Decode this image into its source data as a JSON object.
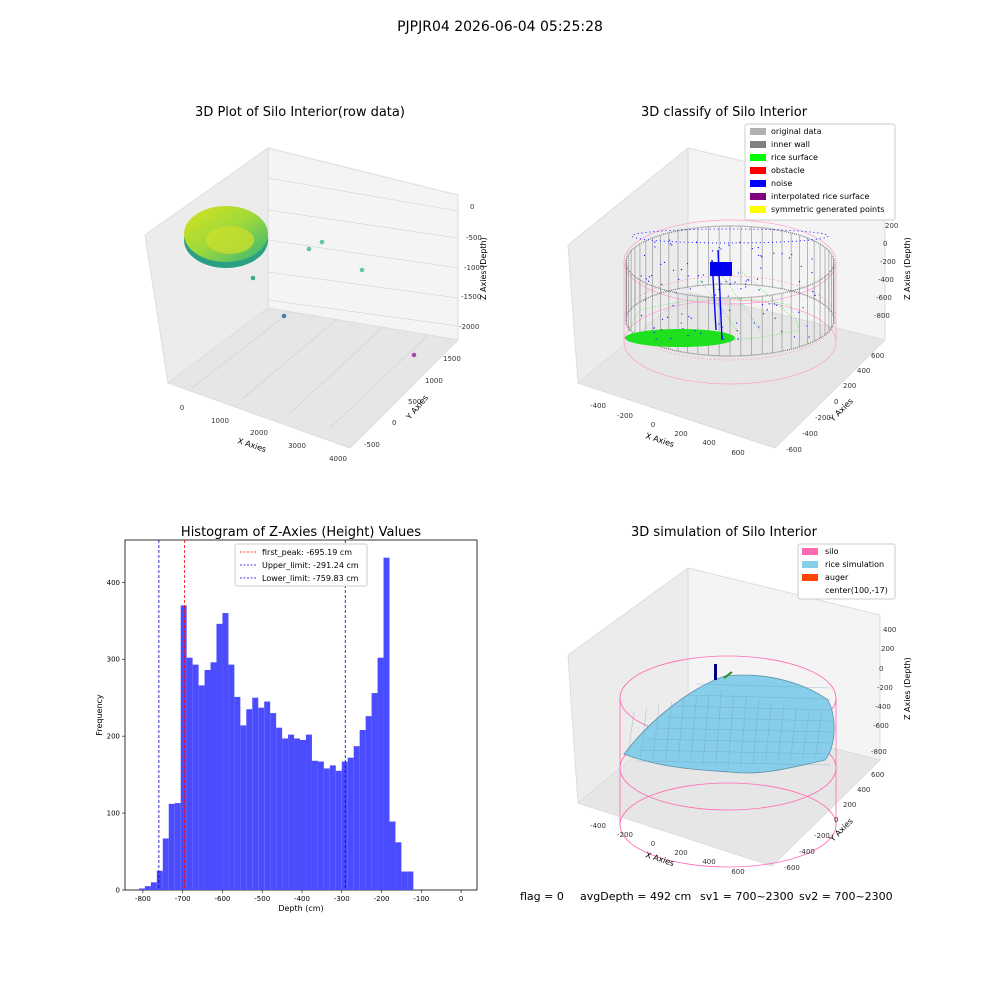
{
  "figure_title": "PJPJR04 2026-06-04 05:25:28",
  "footer": {
    "flag": "flag = 0",
    "avg_depth": "avgDepth = 492 cm",
    "sv1": "sv1 = 700~2300",
    "sv2": "sv2 = 700~2300"
  },
  "chart_data": [
    {
      "type": "scatter",
      "title": "3D Plot of Silo Interior(row data)",
      "xlabel": "X Axies",
      "ylabel": "Y Axies",
      "zlabel": "Z Axies (Depth)",
      "x_ticks": [
        "0",
        "1000",
        "2000",
        "3000",
        "4000"
      ],
      "y_ticks": [
        "-500",
        "0",
        "500",
        "1000",
        "1500"
      ],
      "z_ticks": [
        "0",
        "-500",
        "-1000",
        "-1500",
        "-2000"
      ],
      "colormap": "viridis",
      "outlier_points": [
        {
          "color": "#5fc7a2"
        },
        {
          "color": "#5fc7a2"
        },
        {
          "color": "#5fc7a2"
        },
        {
          "color": "#3aa88e"
        },
        {
          "color": "#4682b4"
        },
        {
          "color": "#a64ca6"
        }
      ]
    },
    {
      "type": "scatter",
      "title": "3D classify of Silo Interior",
      "xlabel": "X Axies",
      "ylabel": "Y Axies",
      "zlabel": "Z Axies (Depth)",
      "x_ticks": [
        "-400",
        "-200",
        "0",
        "200",
        "400",
        "600"
      ],
      "y_ticks": [
        "-600",
        "-400",
        "-200",
        "0",
        "200",
        "400",
        "600"
      ],
      "z_ticks": [
        "200",
        "0",
        "-200",
        "-400",
        "-600",
        "-800"
      ],
      "legend": [
        {
          "label": "original data",
          "color": "#b0b0b0"
        },
        {
          "label": "inner wall",
          "color": "#808080"
        },
        {
          "label": "rice surface",
          "color": "#00ff00"
        },
        {
          "label": "obstacle",
          "color": "#ff0000"
        },
        {
          "label": "noise",
          "color": "#0000ff"
        },
        {
          "label": "interpolated rice surface",
          "color": "#800080"
        },
        {
          "label": "symmetric generated points",
          "color": "#ffff00"
        }
      ]
    },
    {
      "type": "bar",
      "title": "Histogram of Z-Axies (Height) Values",
      "xlabel": "Depth (cm)",
      "ylabel": "Frequency",
      "xlim": [
        -845,
        40
      ],
      "ylim": [
        0,
        455
      ],
      "x_ticks": [
        -800,
        -700,
        -600,
        -500,
        -400,
        -300,
        -200,
        -100,
        0
      ],
      "y_ticks": [
        0,
        100,
        200,
        300,
        400
      ],
      "bin_start": -810,
      "bin_width": 15,
      "bar_color": "#4c4cff",
      "values": [
        2,
        5,
        10,
        25,
        67,
        112,
        113,
        370,
        302,
        293,
        266,
        286,
        296,
        346,
        360,
        293,
        251,
        214,
        235,
        250,
        237,
        245,
        230,
        211,
        197,
        202,
        197,
        195,
        202,
        168,
        167,
        158,
        162,
        155,
        167,
        172,
        187,
        208,
        226,
        256,
        302,
        432,
        89,
        62,
        24,
        24
      ],
      "vlines": [
        {
          "label": "first_peak: -695.19 cm",
          "value": -695.19,
          "color": "#ff0000"
        },
        {
          "label": "Upper_limit: -291.24 cm",
          "value": -291.24,
          "color": "#0000cc"
        },
        {
          "label": "Lower_limit: -759.83 cm",
          "value": -759.83,
          "color": "#0000cc"
        }
      ],
      "legend_position": "upper-center"
    },
    {
      "type": "area",
      "title": "3D simulation of Silo Interior",
      "xlabel": "X Axies",
      "ylabel": "Y Axies",
      "zlabel": "Z Axies (Depth)",
      "x_ticks": [
        "-400",
        "-200",
        "0",
        "200",
        "400",
        "600"
      ],
      "y_ticks": [
        "-600",
        "-400",
        "-200",
        "0",
        "200",
        "400",
        "600"
      ],
      "z_ticks": [
        "400",
        "200",
        "0",
        "-200",
        "-400",
        "-600",
        "-800"
      ],
      "legend": [
        {
          "label": "silo",
          "color": "#ff69b4"
        },
        {
          "label": "rice simulation",
          "color": "#87ceeb"
        },
        {
          "label": "auger",
          "color": "#ff4500"
        },
        {
          "label": "center(100,-17)",
          "color": ""
        }
      ]
    }
  ]
}
